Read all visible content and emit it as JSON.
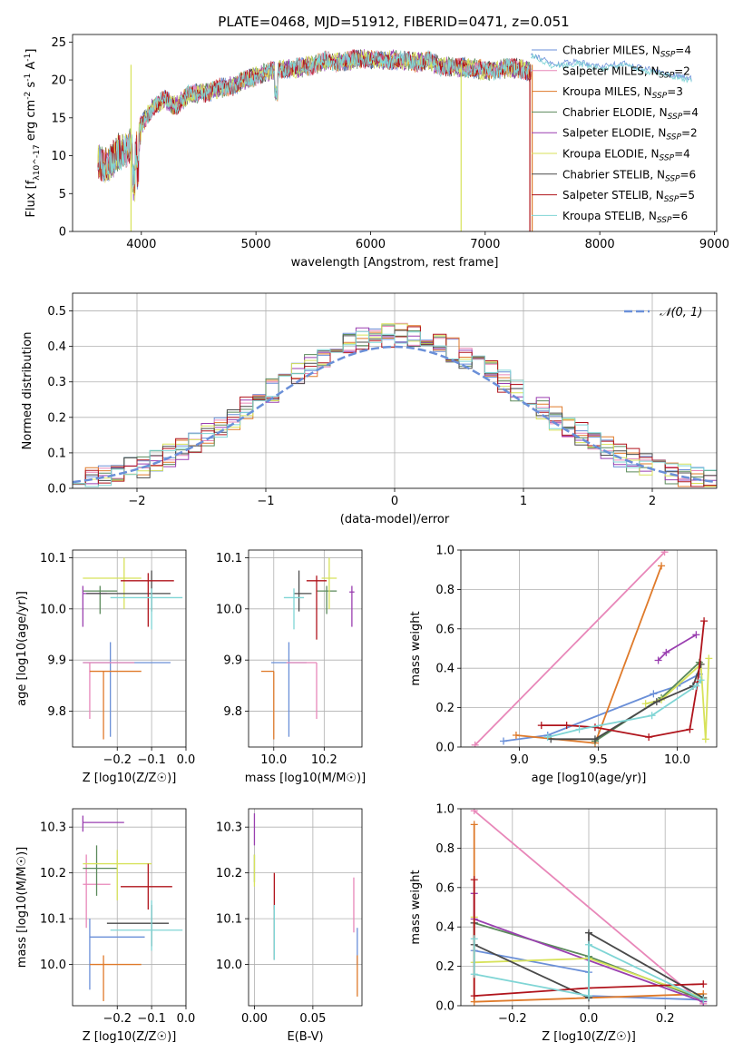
{
  "figure": {
    "title": "PLATE=0468, MJD=51912, FIBERID=0471, z=0.051",
    "colors": [
      "#6a8fd8",
      "#e887b9",
      "#df7a2a",
      "#5b8a5b",
      "#9a3fb0",
      "#d7e25a",
      "#4a4a4a",
      "#b0141c",
      "#7fd5d5"
    ]
  },
  "chart_data": [
    {
      "id": "spectrum",
      "type": "line",
      "xlabel": "wavelength [Angstrom, rest frame]",
      "ylabel": "Flux [f_λ10^-17 erg cm^-2 s^-1 A^-1]",
      "xlim": [
        3400,
        9020
      ],
      "ylim": [
        0,
        26
      ],
      "xticks": [
        4000,
        5000,
        6000,
        7000,
        8000,
        9000
      ],
      "yticks": [
        0,
        5,
        10,
        15,
        20,
        25
      ],
      "grid": false,
      "legend_position": "top-right",
      "series": [
        {
          "name": "Chabrier MILES, N",
          "sub": "SSP",
          "tail": "=4"
        },
        {
          "name": "Salpeter MILES, N",
          "sub": "SSP",
          "tail": "=2"
        },
        {
          "name": "Kroupa MILES, N",
          "sub": "SSP",
          "tail": "=3"
        },
        {
          "name": "Chabrier ELODIE, N",
          "sub": "SSP",
          "tail": "=4"
        },
        {
          "name": "Salpeter ELODIE, N",
          "sub": "SSP",
          "tail": "=2"
        },
        {
          "name": "Kroupa ELODIE, N",
          "sub": "SSP",
          "tail": "=4"
        },
        {
          "name": "Chabrier STELIB, N",
          "sub": "SSP",
          "tail": "=6"
        },
        {
          "name": "Salpeter STELIB, N",
          "sub": "SSP",
          "tail": "=5"
        },
        {
          "name": "Kroupa STELIB, N",
          "sub": "SSP",
          "tail": "=6"
        }
      ],
      "continuum": {
        "x": [
          3620,
          3700,
          3800,
          3900,
          3950,
          4000,
          4100,
          4200,
          4300,
          4400,
          4500,
          4600,
          4700,
          4800,
          4900,
          5000,
          5100,
          5200,
          5300,
          5400,
          5500,
          5600,
          5700,
          5800,
          5900,
          6000,
          6100,
          6200,
          6300,
          6400,
          6500,
          6600,
          6700,
          6800,
          6900,
          7000,
          7100,
          7200,
          7300,
          7400
        ],
        "y": [
          9.5,
          8.5,
          10.5,
          11,
          10,
          14,
          16.5,
          17.5,
          16.5,
          18,
          18.2,
          18.5,
          19,
          19.2,
          20,
          20.5,
          21,
          21.5,
          21.5,
          21.7,
          22,
          22.5,
          22.3,
          22.5,
          22.8,
          22.8,
          22.5,
          22.6,
          22.6,
          22.3,
          22.6,
          21.8,
          21.8,
          21.6,
          21.5,
          21.3,
          21.3,
          21.6,
          21.5,
          21
        ]
      },
      "model_tail": {
        "x": [
          7400,
          7600,
          7800,
          8000,
          8200,
          8400,
          8600,
          8800
        ],
        "y": [
          23.5,
          22.0,
          22.5,
          21.8,
          22.2,
          21.5,
          20.8,
          20.2
        ]
      },
      "spikes": [
        {
          "x": 3910,
          "color_index": 5
        },
        {
          "x": 6790,
          "color_index": 5
        },
        {
          "x": 7390,
          "color_index": 7
        },
        {
          "x": 7410,
          "color_index": 2
        }
      ]
    },
    {
      "id": "residuals",
      "type": "histogram",
      "xlabel": "(data-model)/error",
      "ylabel": "Normed distribution",
      "xlim": [
        -2.5,
        2.5
      ],
      "ylim": [
        0,
        0.55
      ],
      "xticks": [
        -2,
        -1,
        0,
        1,
        2
      ],
      "yticks": [
        0.0,
        0.1,
        0.2,
        0.3,
        0.4,
        0.5
      ],
      "grid": true,
      "bin_width": 0.1,
      "legend_position": "top-right",
      "reference": {
        "name": "𝒩(0, 1)",
        "mean": 0,
        "sigma": 1
      }
    },
    {
      "id": "age-vs-z",
      "type": "errorbar",
      "xlabel": "Z [log10(Z/Z☉)]",
      "ylabel": "age  [log10(age/yr)]",
      "xlim": [
        -0.33,
        0.0
      ],
      "ylim": [
        9.73,
        10.115
      ],
      "xticks": [
        -0.2,
        -0.1,
        0.0
      ],
      "yticks": [
        9.8,
        9.9,
        10.0,
        10.1
      ],
      "grid": true,
      "points": [
        {
          "x": -0.22,
          "y": 9.895,
          "xlo": -0.3,
          "xhi": -0.045,
          "ylo": 9.75,
          "yhi": 9.935,
          "color_index": 0
        },
        {
          "x": -0.28,
          "y": 9.895,
          "xlo": -0.3,
          "xhi": -0.15,
          "ylo": 9.785,
          "yhi": 9.895,
          "color_index": 1
        },
        {
          "x": -0.24,
          "y": 9.878,
          "xlo": -0.28,
          "xhi": -0.13,
          "ylo": 9.745,
          "yhi": 9.878,
          "color_index": 2
        },
        {
          "x": -0.25,
          "y": 10.035,
          "xlo": -0.3,
          "xhi": -0.2,
          "ylo": 9.99,
          "yhi": 10.045,
          "color_index": 3
        },
        {
          "x": -0.3,
          "y": 10.03,
          "xlo": -0.3,
          "xhi": -0.23,
          "ylo": 9.965,
          "yhi": 10.045,
          "color_index": 4
        },
        {
          "x": -0.18,
          "y": 10.06,
          "xlo": -0.3,
          "xhi": -0.13,
          "ylo": 10.0,
          "yhi": 10.1,
          "color_index": 5
        },
        {
          "x": -0.1,
          "y": 10.03,
          "xlo": -0.29,
          "xhi": -0.045,
          "ylo": 9.995,
          "yhi": 10.075,
          "color_index": 6
        },
        {
          "x": -0.11,
          "y": 10.055,
          "xlo": -0.19,
          "xhi": -0.035,
          "ylo": 9.965,
          "yhi": 10.07,
          "color_index": 7
        },
        {
          "x": -0.1,
          "y": 10.022,
          "xlo": -0.22,
          "xhi": -0.01,
          "ylo": 9.96,
          "yhi": 10.04,
          "color_index": 8
        }
      ]
    },
    {
      "id": "age-vs-mass",
      "type": "errorbar",
      "xlabel": "mass [log10(M/M☉)]",
      "ylabel": "",
      "xlim": [
        9.9,
        10.35
      ],
      "ylim": [
        9.73,
        10.115
      ],
      "xticks": [
        10.0,
        10.2
      ],
      "yticks": [
        9.8,
        9.9,
        10.0,
        10.1
      ],
      "grid": true,
      "points": [
        {
          "x": 10.06,
          "y": 9.895,
          "xlo": 9.99,
          "xhi": 10.13,
          "ylo": 9.75,
          "yhi": 9.935,
          "color_index": 0
        },
        {
          "x": 10.17,
          "y": 9.895,
          "xlo": 10.05,
          "xhi": 10.17,
          "ylo": 9.785,
          "yhi": 9.895,
          "color_index": 1
        },
        {
          "x": 10.0,
          "y": 9.878,
          "xlo": 9.95,
          "xhi": 10.0,
          "ylo": 9.745,
          "yhi": 9.878,
          "color_index": 2
        },
        {
          "x": 10.21,
          "y": 10.035,
          "xlo": 10.17,
          "xhi": 10.25,
          "ylo": 9.99,
          "yhi": 10.045,
          "color_index": 3
        },
        {
          "x": 10.31,
          "y": 10.033,
          "xlo": 10.3,
          "xhi": 10.32,
          "ylo": 9.965,
          "yhi": 10.045,
          "color_index": 4
        },
        {
          "x": 10.22,
          "y": 10.06,
          "xlo": 10.19,
          "xhi": 10.25,
          "ylo": 10.0,
          "yhi": 10.1,
          "color_index": 5
        },
        {
          "x": 10.1,
          "y": 10.03,
          "xlo": 10.08,
          "xhi": 10.15,
          "ylo": 9.995,
          "yhi": 10.075,
          "color_index": 6
        },
        {
          "x": 10.17,
          "y": 10.055,
          "xlo": 10.13,
          "xhi": 10.21,
          "ylo": 9.94,
          "yhi": 10.065,
          "color_index": 7
        },
        {
          "x": 10.08,
          "y": 10.022,
          "xlo": 10.04,
          "xhi": 10.12,
          "ylo": 9.96,
          "yhi": 10.04,
          "color_index": 8
        }
      ]
    },
    {
      "id": "weight-vs-age",
      "type": "line",
      "xlabel": "age  [log10(age/yr)]",
      "ylabel": "mass weight",
      "xlim": [
        8.63,
        10.25
      ],
      "ylim": [
        0,
        1.0
      ],
      "xticks": [
        9.0,
        9.5,
        10.0
      ],
      "yticks": [
        0.0,
        0.2,
        0.4,
        0.6,
        0.8,
        1.0
      ],
      "grid": true,
      "series": [
        {
          "color_index": 0,
          "x": [
            8.9,
            9.18,
            9.85,
            10.0,
            10.14
          ],
          "y": [
            0.03,
            0.06,
            0.27,
            0.31,
            0.37
          ]
        },
        {
          "color_index": 1,
          "x": [
            8.72,
            9.92
          ],
          "y": [
            0.01,
            0.99
          ]
        },
        {
          "color_index": 2,
          "x": [
            8.98,
            9.48,
            9.9
          ],
          "y": [
            0.06,
            0.02,
            0.92
          ]
        },
        {
          "color_index": 3,
          "x": [
            9.48,
            9.9,
            10.14
          ],
          "y": [
            0.03,
            0.25,
            0.43
          ]
        },
        {
          "color_index": 4,
          "x": [
            9.88,
            9.93,
            10.12
          ],
          "y": [
            0.44,
            0.48,
            0.57
          ]
        },
        {
          "color_index": 5,
          "x": [
            9.8,
            9.9,
            10.15,
            10.18,
            10.2
          ],
          "y": [
            0.22,
            0.24,
            0.42,
            0.04,
            0.45
          ]
        },
        {
          "color_index": 6,
          "x": [
            9.2,
            9.48,
            9.87,
            10.1,
            10.15
          ],
          "y": [
            0.04,
            0.04,
            0.23,
            0.31,
            0.42
          ]
        },
        {
          "color_index": 7,
          "x": [
            9.14,
            9.3,
            9.48,
            9.82,
            10.08,
            10.13,
            10.17
          ],
          "y": [
            0.11,
            0.11,
            0.1,
            0.05,
            0.09,
            0.33,
            0.64
          ]
        },
        {
          "color_index": 8,
          "x": [
            9.18,
            9.38,
            9.84,
            10.12,
            10.15
          ],
          "y": [
            0.05,
            0.09,
            0.16,
            0.31,
            0.34
          ]
        }
      ]
    },
    {
      "id": "mass-vs-z",
      "type": "errorbar",
      "xlabel": "Z [log10(Z/Z☉)]",
      "ylabel": "mass [log10(M/M☉)]",
      "xlim": [
        -0.33,
        0.0
      ],
      "ylim": [
        9.91,
        10.34
      ],
      "xticks": [
        -0.2,
        -0.1,
        0.0
      ],
      "yticks": [
        10.0,
        10.1,
        10.2,
        10.3
      ],
      "grid": true,
      "points": [
        {
          "x": -0.28,
          "y": 10.06,
          "xlo": -0.28,
          "xhi": -0.12,
          "ylo": 9.945,
          "yhi": 10.1,
          "color_index": 0
        },
        {
          "x": -0.29,
          "y": 10.175,
          "xlo": -0.3,
          "xhi": -0.22,
          "ylo": 10.08,
          "yhi": 10.24,
          "color_index": 1
        },
        {
          "x": -0.24,
          "y": 10.0,
          "xlo": -0.28,
          "xhi": -0.13,
          "ylo": 9.92,
          "yhi": 10.02,
          "color_index": 2
        },
        {
          "x": -0.26,
          "y": 10.21,
          "xlo": -0.3,
          "xhi": -0.2,
          "ylo": 10.15,
          "yhi": 10.26,
          "color_index": 3
        },
        {
          "x": -0.3,
          "y": 10.31,
          "xlo": -0.3,
          "xhi": -0.18,
          "ylo": 10.29,
          "yhi": 10.325,
          "color_index": 4
        },
        {
          "x": -0.2,
          "y": 10.22,
          "xlo": -0.3,
          "xhi": -0.1,
          "ylo": 10.14,
          "yhi": 10.25,
          "color_index": 5
        },
        {
          "x": -0.1,
          "y": 10.09,
          "xlo": -0.23,
          "xhi": -0.05,
          "ylo": 10.04,
          "yhi": 10.13,
          "color_index": 6
        },
        {
          "x": -0.11,
          "y": 10.17,
          "xlo": -0.19,
          "xhi": -0.04,
          "ylo": 10.12,
          "yhi": 10.22,
          "color_index": 7
        },
        {
          "x": -0.1,
          "y": 10.075,
          "xlo": -0.22,
          "xhi": -0.01,
          "ylo": 10.03,
          "yhi": 10.14,
          "color_index": 8
        }
      ]
    },
    {
      "id": "mass-vs-ebv",
      "type": "errorbar",
      "xlabel": "E(B-V)",
      "ylabel": "",
      "xlim": [
        -0.005,
        0.092
      ],
      "ylim": [
        9.91,
        10.34
      ],
      "xticks": [
        0.0,
        0.05
      ],
      "yticks": [
        10.0,
        10.1,
        10.2,
        10.3
      ],
      "grid": true,
      "points": [
        {
          "x": 0.088,
          "y": 10.05,
          "xlo": 0.088,
          "xhi": 0.088,
          "ylo": 10.0,
          "yhi": 10.08,
          "color_index": 0
        },
        {
          "x": 0.085,
          "y": 10.09,
          "xlo": 0.085,
          "xhi": 0.085,
          "ylo": 10.07,
          "yhi": 10.19,
          "color_index": 1
        },
        {
          "x": 0.088,
          "y": 10.0,
          "xlo": 0.088,
          "xhi": 0.088,
          "ylo": 9.93,
          "yhi": 10.02,
          "color_index": 2
        },
        {
          "x": 0.0,
          "y": 10.21,
          "xlo": 0.0,
          "xhi": 0.0,
          "ylo": 10.18,
          "yhi": 10.24,
          "color_index": 3
        },
        {
          "x": 0.0,
          "y": 10.3,
          "xlo": 0.0,
          "xhi": 0.0,
          "ylo": 10.26,
          "yhi": 10.33,
          "color_index": 4
        },
        {
          "x": 0.0,
          "y": 10.21,
          "xlo": 0.0,
          "xhi": 0.0,
          "ylo": 10.17,
          "yhi": 10.24,
          "color_index": 5
        },
        {
          "x": 0.017,
          "y": 10.07,
          "xlo": 0.017,
          "xhi": 0.017,
          "ylo": 10.01,
          "yhi": 10.13,
          "color_index": 6
        },
        {
          "x": 0.017,
          "y": 10.16,
          "xlo": 0.017,
          "xhi": 0.017,
          "ylo": 10.12,
          "yhi": 10.2,
          "color_index": 7
        },
        {
          "x": 0.017,
          "y": 10.08,
          "xlo": 0.017,
          "xhi": 0.017,
          "ylo": 10.01,
          "yhi": 10.13,
          "color_index": 8
        }
      ]
    },
    {
      "id": "weight-vs-z",
      "type": "line",
      "xlabel": "Z [log10(Z/Z☉)]",
      "ylabel": "mass weight",
      "xlim": [
        -0.335,
        0.335
      ],
      "ylim": [
        0,
        1.0
      ],
      "xticks": [
        -0.2,
        0.0,
        0.2
      ],
      "yticks": [
        0.0,
        0.2,
        0.4,
        0.6,
        0.8,
        1.0
      ],
      "grid": true,
      "series": [
        {
          "color_index": 0,
          "x": [
            -0.3,
            0.0,
            0.0,
            0.3
          ],
          "y": [
            0.28,
            0.17,
            0.05,
            0.03
          ]
        },
        {
          "color_index": 1,
          "x": [
            -0.3,
            0.3
          ],
          "y": [
            0.99,
            0.01
          ]
        },
        {
          "color_index": 2,
          "x": [
            -0.3,
            -0.3,
            0.3
          ],
          "y": [
            0.92,
            0.02,
            0.06
          ]
        },
        {
          "color_index": 3,
          "x": [
            -0.3,
            0.0,
            0.3
          ],
          "y": [
            0.42,
            0.25,
            0.03
          ]
        },
        {
          "color_index": 4,
          "x": [
            -0.3,
            -0.3,
            0.3
          ],
          "y": [
            0.57,
            0.44,
            0.02
          ]
        },
        {
          "color_index": 5,
          "x": [
            -0.3,
            -0.3,
            0.0,
            0.3
          ],
          "y": [
            0.45,
            0.22,
            0.24,
            0.04
          ]
        },
        {
          "color_index": 6,
          "x": [
            -0.3,
            -0.3,
            0.0,
            0.0,
            0.3
          ],
          "y": [
            0.42,
            0.31,
            0.04,
            0.37,
            0.04
          ]
        },
        {
          "color_index": 7,
          "x": [
            -0.3,
            -0.3,
            0.0,
            0.3
          ],
          "y": [
            0.64,
            0.05,
            0.09,
            0.11
          ]
        },
        {
          "color_index": 8,
          "x": [
            -0.3,
            -0.3,
            0.0,
            0.0,
            0.3
          ],
          "y": [
            0.34,
            0.16,
            0.05,
            0.31,
            0.03
          ]
        }
      ]
    }
  ]
}
